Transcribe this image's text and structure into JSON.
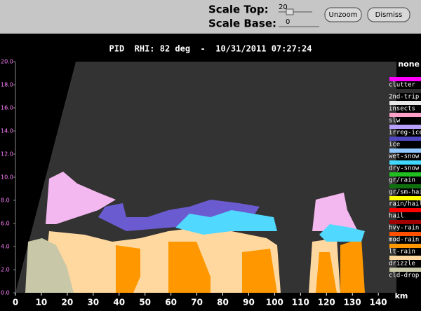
{
  "toolbar": {
    "scale_top_label": "Scale Top:",
    "scale_top_value": "20",
    "scale_base_label": "Scale Base:",
    "scale_base_value": "0",
    "buttons": [
      "Unzoom",
      "Dismiss"
    ]
  },
  "plot": {
    "title": "PID  RHI: 82 deg  -  10/31/2011 07:27:24",
    "x_unit": "km",
    "xlim": [
      0,
      147
    ],
    "ylim": [
      0,
      20
    ],
    "xticks": [
      0,
      10,
      20,
      30,
      40,
      50,
      60,
      70,
      80,
      90,
      100,
      110,
      120,
      130,
      140
    ],
    "yticks": [
      {
        "value": 0,
        "label": "0.0"
      },
      {
        "value": 2,
        "label": "2.0"
      },
      {
        "value": 4,
        "label": "4.0"
      },
      {
        "value": 6,
        "label": "6.0"
      },
      {
        "value": 8,
        "label": "8.0"
      },
      {
        "value": 10,
        "label": "10.0"
      },
      {
        "value": 12,
        "label": "12.0"
      },
      {
        "value": 14,
        "label": "14.0"
      },
      {
        "value": 16,
        "label": "16.0"
      },
      {
        "value": 18,
        "label": "18.0"
      },
      {
        "value": 20,
        "label": "20.0"
      }
    ],
    "legend": {
      "title": "none",
      "entries": [
        {
          "label": "clutter",
          "color": "#ff00ff"
        },
        {
          "label": "2nd-trip",
          "color": "#303030"
        },
        {
          "label": "insects",
          "color": "#e8e8e8"
        },
        {
          "label": "slw",
          "color": "#ffa0c8"
        },
        {
          "label": "irreg-ice",
          "color": "#b8a0ff"
        },
        {
          "label": "ice",
          "color": "#5048c0"
        },
        {
          "label": "wet-snow",
          "color": "#90c8ff"
        },
        {
          "label": "dry-snow",
          "color": "#40d8ff"
        },
        {
          "label": "gr/rain",
          "color": "#20c020"
        },
        {
          "label": "gr/sm-hail",
          "color": "#107010"
        },
        {
          "label": "rain/hail",
          "color": "#ffff00"
        },
        {
          "label": "hail",
          "color": "#ff0000"
        },
        {
          "label": "hvy-rain",
          "color": "#a00000"
        },
        {
          "label": "mod-rain",
          "color": "#ff5000"
        },
        {
          "label": "lt-rain",
          "color": "#ff9800"
        },
        {
          "label": "drizzle",
          "color": "#ffd8a0"
        },
        {
          "label": "cld-drop",
          "color": "#c8c8a8"
        }
      ]
    }
  }
}
